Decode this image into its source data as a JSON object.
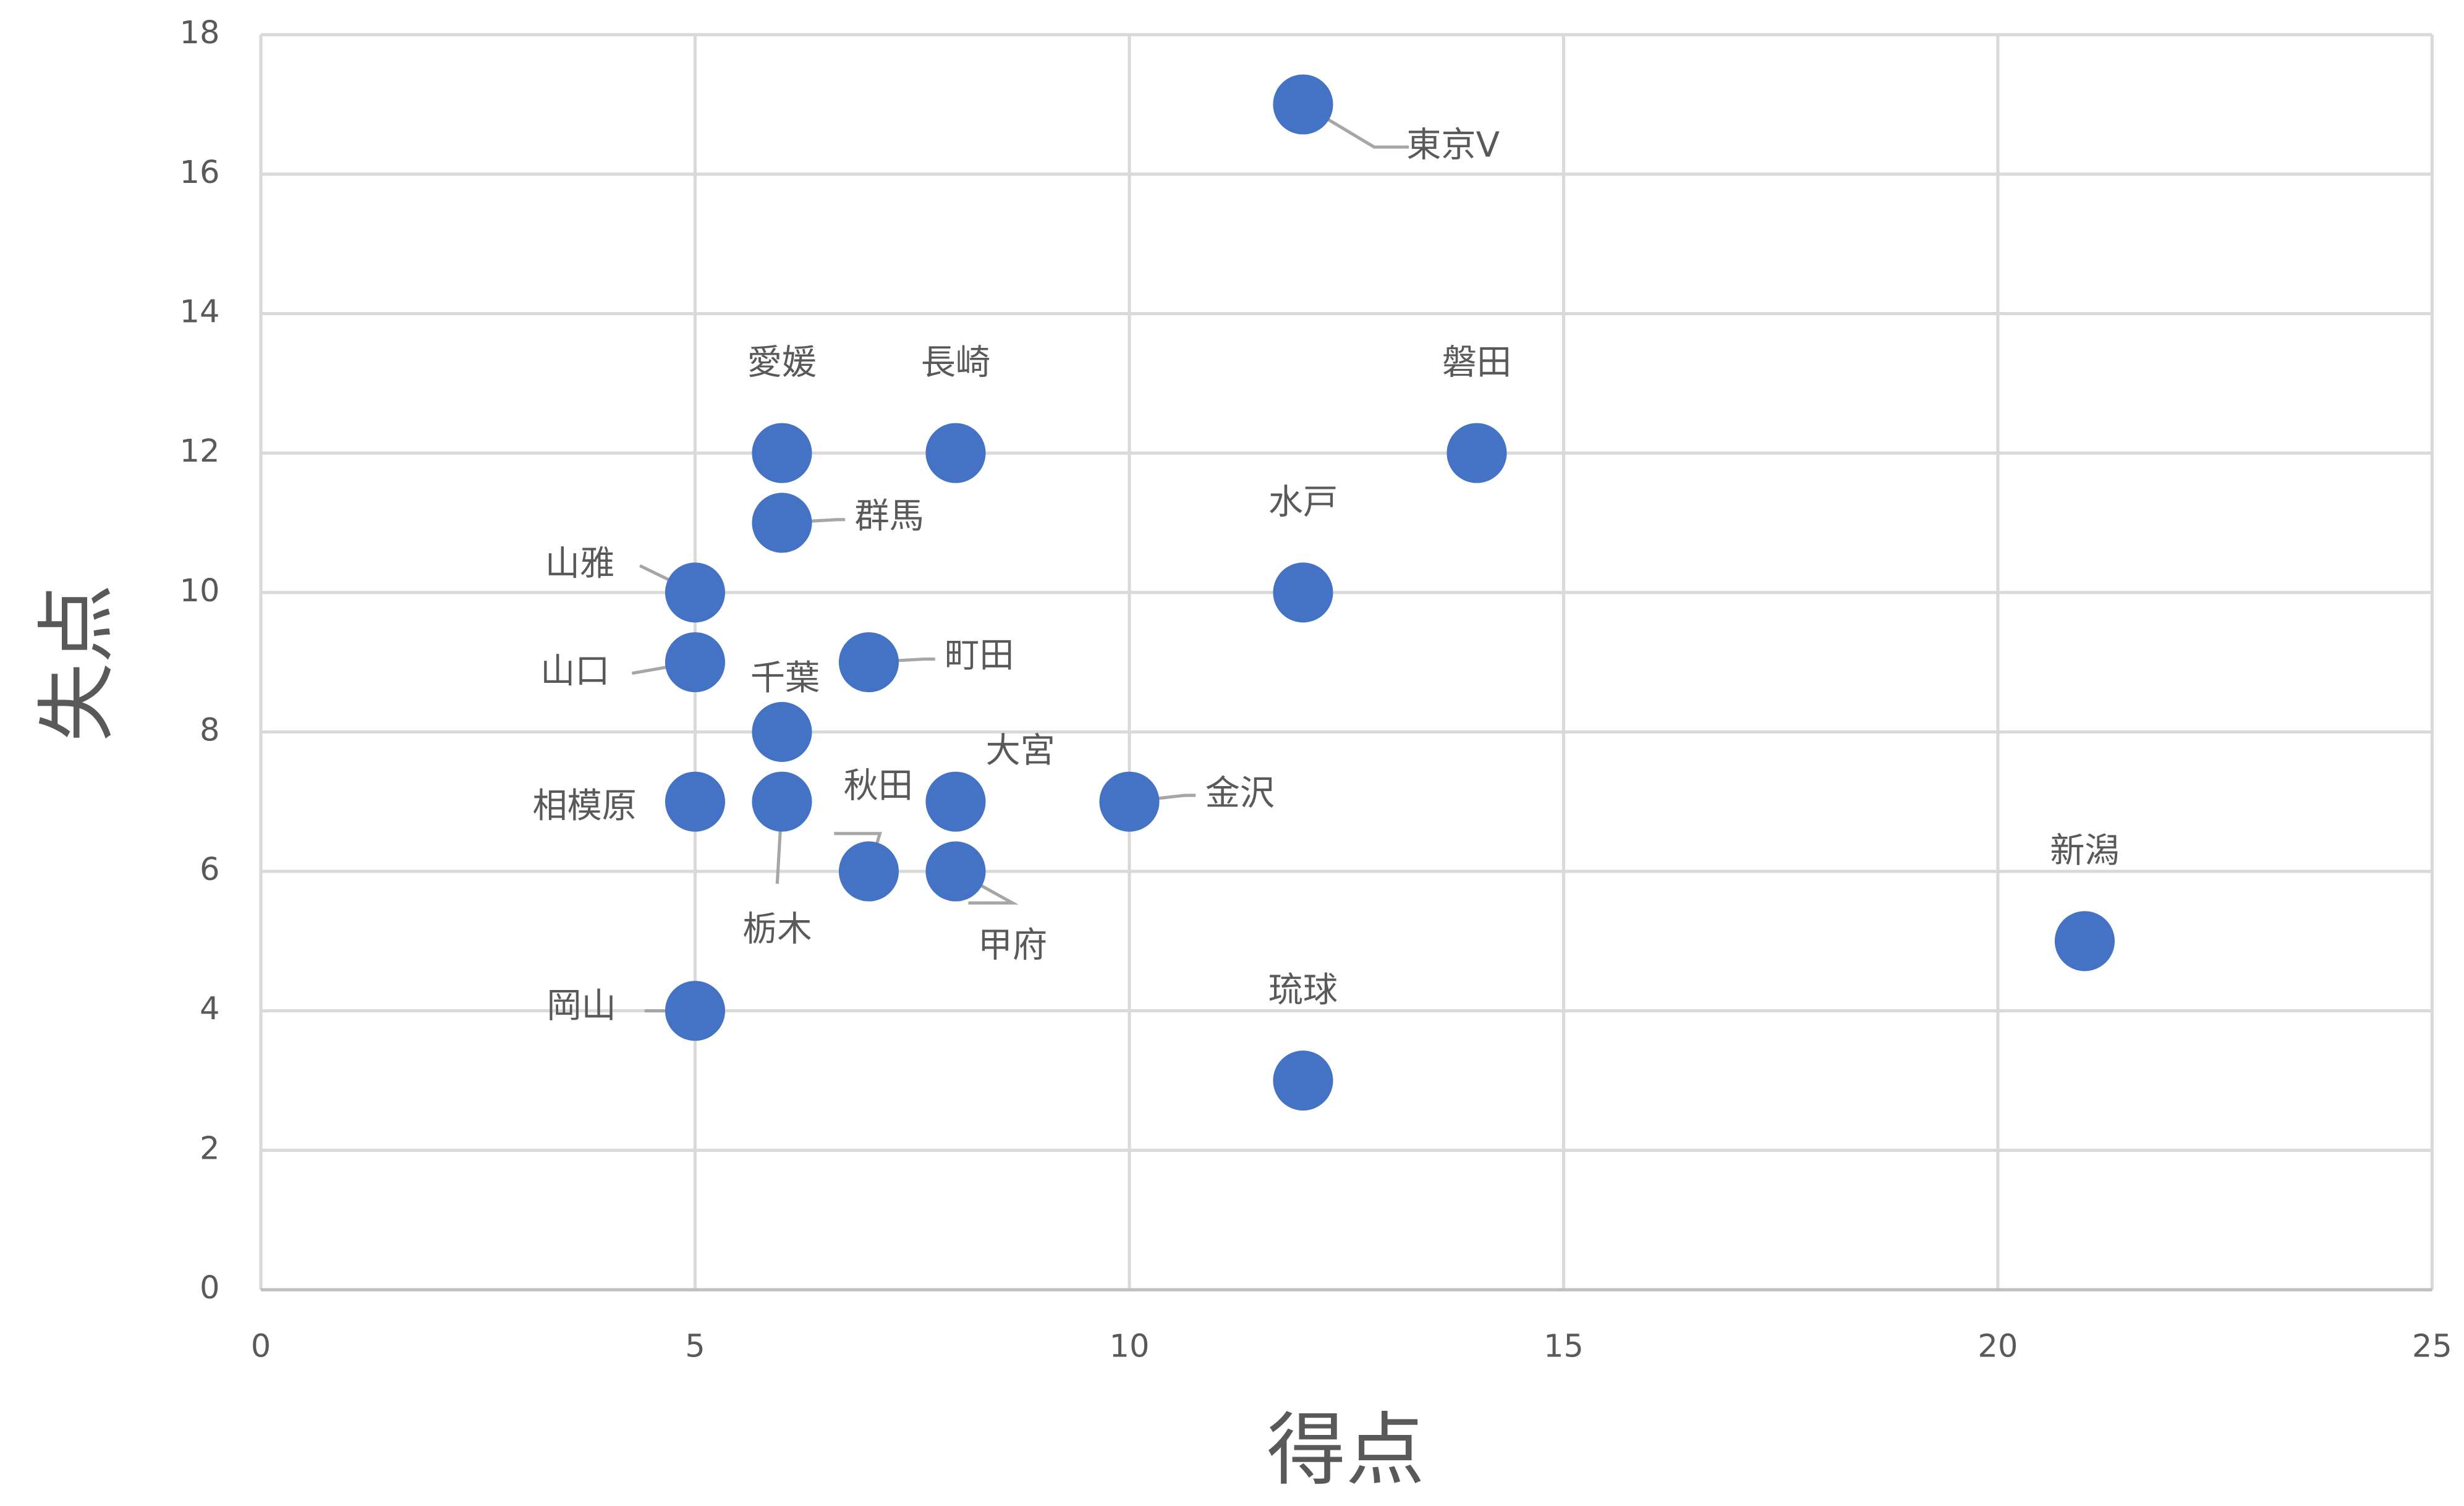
{
  "chart_data": {
    "type": "scatter",
    "x_label": "得点",
    "y_label": "失点",
    "x": [
      12,
      6,
      8,
      14,
      6,
      5,
      12,
      5,
      7,
      6,
      5,
      6,
      8,
      10,
      7,
      8,
      21,
      5,
      12
    ],
    "series": [
      {
        "color": "#4472c4",
        "values": [
          17,
          12,
          12,
          12,
          11,
          10,
          10,
          9,
          9,
          8,
          7,
          7,
          7,
          7,
          6,
          6,
          5,
          4,
          3
        ],
        "labels": [
          "東京V",
          "愛媛",
          "長崎",
          "磐田",
          "群馬",
          "山雅",
          "水戸",
          "山口",
          "町田",
          "千葉",
          "相模原",
          "栃木",
          "大宮",
          "金沢",
          "秋田",
          "甲府",
          "新潟",
          "岡山",
          "琉球"
        ]
      }
    ],
    "xlim": [
      0,
      25
    ],
    "xticks": [
      0,
      5,
      10,
      15,
      20,
      25
    ],
    "ylim": [
      0,
      18
    ],
    "yticks": [
      0,
      2,
      4,
      6,
      8,
      10,
      12,
      14,
      16,
      18
    ],
    "grid": true
  }
}
